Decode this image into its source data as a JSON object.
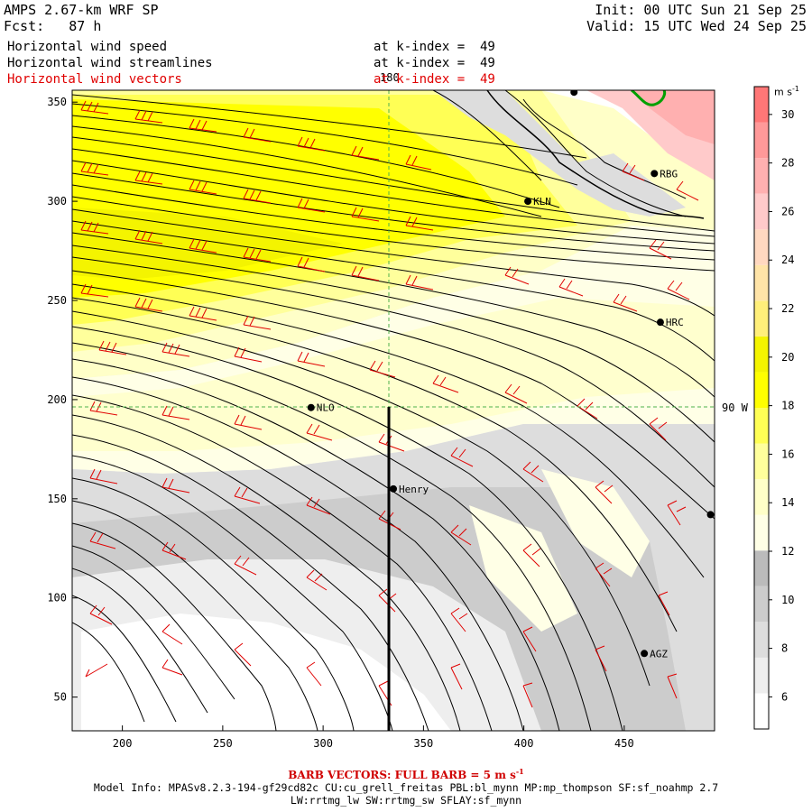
{
  "header": {
    "model": "AMPS 2.67-km WRF SP",
    "forecast": "Fcst:   87 h",
    "init": "Init: 00 UTC Sun 21 Sep 25",
    "valid": "Valid: 15 UTC Wed 24 Sep 25"
  },
  "fields": [
    {
      "label": "Horizontal wind speed",
      "level": "at k-index =  49",
      "color": "#000000"
    },
    {
      "label": "Horizontal wind streamlines",
      "level": "at k-index =  49",
      "color": "#000000"
    },
    {
      "label": "Horizontal wind vectors",
      "level": "at k-index =  49",
      "color": "#e00000"
    }
  ],
  "axes": {
    "x_ticks": [
      200,
      250,
      300,
      350,
      400,
      450
    ],
    "y_ticks": [
      50,
      100,
      150,
      200,
      250,
      300,
      350
    ],
    "x_range": [
      175,
      495
    ],
    "y_range": [
      33,
      356
    ]
  },
  "graticule": {
    "meridian_label": "180",
    "parallel_label": "90 W"
  },
  "stations": [
    {
      "name": "RBG",
      "x": 465,
      "y": 314
    },
    {
      "name": "KLN",
      "x": 402,
      "y": 300
    },
    {
      "name": "HRC",
      "x": 468,
      "y": 239
    },
    {
      "name": "NLO",
      "x": 294,
      "y": 196
    },
    {
      "name": "Henry",
      "x": 335,
      "y": 155
    },
    {
      "name": "AGZ",
      "x": 460,
      "y": 72
    },
    {
      "name": "",
      "x": 493,
      "y": 142
    },
    {
      "name": "",
      "x": 425,
      "y": 355
    }
  ],
  "colorbar": {
    "unit": "m s",
    "unit_exp": "-1",
    "labels": [
      6,
      8,
      10,
      12,
      14,
      16,
      18,
      20,
      22,
      24,
      26,
      28,
      30
    ],
    "colors": [
      "#ffffff",
      "#eeeeee",
      "#dddddd",
      "#cccccc",
      "#bbbbbb",
      "#ffffe6",
      "#ffffc8",
      "#ffff9c",
      "#ffff55",
      "#ffff00",
      "#f4f400",
      "#ffef7a",
      "#ffe4a8",
      "#ffd8c0",
      "#ffcaca",
      "#ffb0b0",
      "#ff9999",
      "#ff7777"
    ]
  },
  "footer": {
    "barb": "BARB VECTORS:  FULL BARB = 5 m s",
    "barb_exp": "-1",
    "model_info": "Model Info: MPASv8.2.3-194-gf29cd82c CU:cu_grell_freitas PBL:bl_mynn MP:mp_thompson SF:sf_noahmp 2.7",
    "model_info2": "LW:rrtmg_lw SW:rrtmg_sw SFLAY:sf_mynn"
  }
}
